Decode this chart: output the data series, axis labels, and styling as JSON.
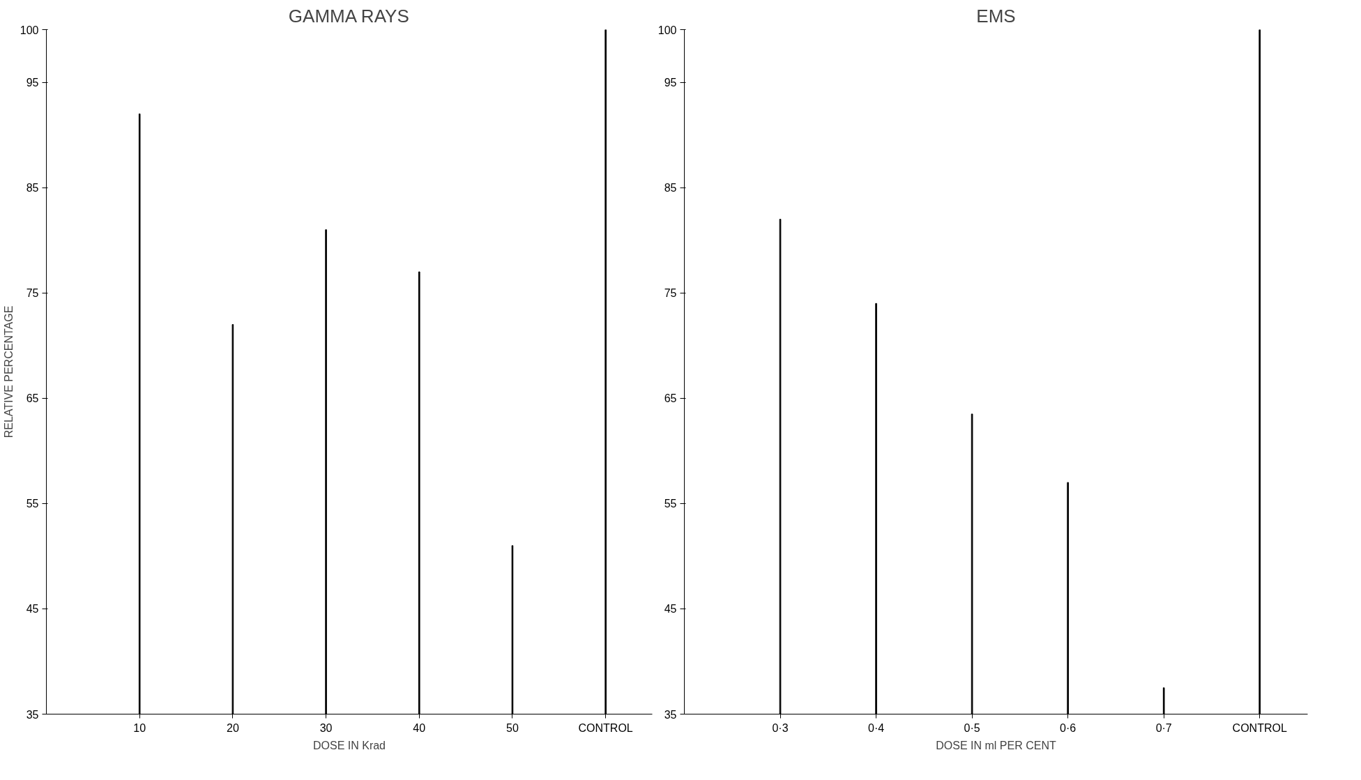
{
  "chart_data": [
    {
      "type": "bar",
      "title": "GAMMA RAYS",
      "xlabel": "DOSE IN Krad",
      "ylabel": "RELATIVE PERCENTAGE",
      "categories": [
        "10",
        "20",
        "30",
        "40",
        "50",
        "CONTROL"
      ],
      "values": [
        92,
        72,
        81,
        77,
        51,
        100
      ],
      "color": "#000000",
      "ylim": [
        35,
        100
      ],
      "yticks": [
        35,
        45,
        55,
        65,
        75,
        85,
        95,
        100
      ],
      "grid": false
    },
    {
      "type": "bar",
      "title": "EMS",
      "xlabel": "DOSE IN ml PER CENT",
      "categories": [
        "0·3",
        "0·4",
        "0·5",
        "0·6",
        "0·7",
        "CONTROL"
      ],
      "values": [
        82,
        74,
        63.5,
        57,
        37.5,
        100
      ],
      "color": "#000000",
      "ylim": [
        35,
        100
      ],
      "yticks": [
        35,
        45,
        55,
        65,
        75,
        85,
        95,
        100
      ],
      "grid": false
    }
  ]
}
